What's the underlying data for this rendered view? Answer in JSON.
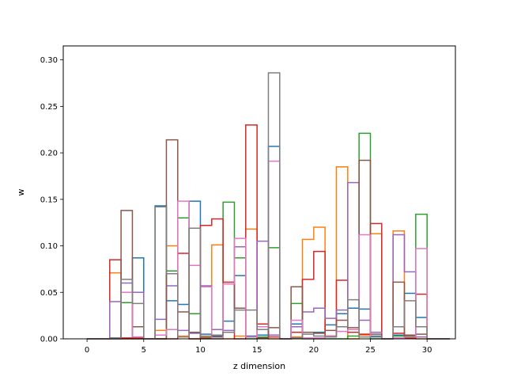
{
  "chart_data": {
    "type": "bar",
    "style": "step-histogram",
    "title": "",
    "xlabel": "z dimension",
    "ylabel": "w",
    "xlim": [
      -2.1,
      32.5
    ],
    "ylim": [
      0,
      0.315
    ],
    "xticks": [
      0,
      5,
      10,
      15,
      20,
      25,
      30
    ],
    "yticks": [
      0.0,
      0.05,
      0.1,
      0.15,
      0.2,
      0.25,
      0.3
    ],
    "xtick_labels": [
      "0",
      "5",
      "10",
      "15",
      "20",
      "25",
      "30"
    ],
    "ytick_labels": [
      "0.00",
      "0.05",
      "0.10",
      "0.15",
      "0.20",
      "0.25",
      "0.30"
    ],
    "grid": false,
    "legend": "none",
    "bin_width": 1,
    "bin_edges_start": 0,
    "series": [
      {
        "color": "#1f77b4",
        "values": [
          0,
          0,
          0,
          0,
          0.087,
          0,
          0.143,
          0.041,
          0.037,
          0.148,
          0.005,
          0.003,
          0.019,
          0.068,
          0.003,
          0.004,
          0.207,
          0,
          0.016,
          0.007,
          0.007,
          0.015,
          0.027,
          0.033,
          0.032,
          0.003,
          0,
          0.004,
          0.049,
          0.023,
          0,
          0
        ]
      },
      {
        "color": "#ff7f0e",
        "values": [
          0,
          0,
          0.071,
          0,
          0,
          0,
          0.009,
          0.1,
          0.003,
          0,
          0.002,
          0.101,
          0,
          0.003,
          0.118,
          0.001,
          0,
          0,
          0.002,
          0.107,
          0.12,
          0.003,
          0.185,
          0,
          0.004,
          0.113,
          0,
          0.116,
          0.004,
          0,
          0,
          0
        ]
      },
      {
        "color": "#2ca02c",
        "values": [
          0,
          0,
          0,
          0.039,
          0,
          0,
          0,
          0.073,
          0.13,
          0.027,
          0,
          0,
          0.147,
          0.087,
          0,
          0.002,
          0.098,
          0,
          0.038,
          0,
          0,
          0,
          0,
          0.003,
          0.221,
          0,
          0,
          0.003,
          0.003,
          0.134,
          0,
          0
        ]
      },
      {
        "color": "#d62728",
        "values": [
          0,
          0,
          0.085,
          0.001,
          0.001,
          0,
          0,
          0,
          0.092,
          0,
          0.122,
          0.129,
          0.061,
          0,
          0.23,
          0.016,
          0.002,
          0,
          0.007,
          0.064,
          0.094,
          0.003,
          0.063,
          0.007,
          0.005,
          0.124,
          0,
          0.006,
          0.001,
          0.048,
          0,
          0
        ]
      },
      {
        "color": "#9467bd",
        "values": [
          0,
          0,
          0.04,
          0.06,
          0.05,
          0,
          0.021,
          0.057,
          0.009,
          0.006,
          0.057,
          0.01,
          0.009,
          0.099,
          0.002,
          0.105,
          0.004,
          0,
          0.013,
          0.029,
          0.033,
          0.022,
          0.031,
          0.168,
          0.02,
          0.007,
          0,
          0.112,
          0.072,
          0.002,
          0,
          0
        ]
      },
      {
        "color": "#8c564b",
        "values": [
          0,
          0,
          0.001,
          0.138,
          0.013,
          0,
          0,
          0.214,
          0.029,
          0.007,
          0.001,
          0.002,
          0.059,
          0.033,
          0.002,
          0.001,
          0.012,
          0,
          0.056,
          0.007,
          0.006,
          0.009,
          0.02,
          0.012,
          0.192,
          0.005,
          0,
          0.061,
          0.004,
          0.005,
          0,
          0
        ]
      },
      {
        "color": "#e377c2",
        "values": [
          0,
          0,
          0,
          0.05,
          0.002,
          0,
          0.004,
          0.01,
          0.148,
          0.079,
          0.056,
          0,
          0.059,
          0.108,
          0.002,
          0.013,
          0.191,
          0,
          0.02,
          0.001,
          0.001,
          0.003,
          0.008,
          0.01,
          0.112,
          0.002,
          0,
          0.001,
          0.002,
          0.097,
          0,
          0
        ]
      },
      {
        "color": "#7f7f7f",
        "values": [
          0,
          0,
          0.001,
          0.064,
          0.038,
          0,
          0.142,
          0.07,
          0.002,
          0.119,
          0.003,
          0.004,
          0.007,
          0.031,
          0.031,
          0.01,
          0.286,
          0,
          0.001,
          0.005,
          0.003,
          0.002,
          0.013,
          0.042,
          0.002,
          0.002,
          0,
          0.013,
          0.041,
          0.013,
          0,
          0
        ]
      }
    ]
  }
}
